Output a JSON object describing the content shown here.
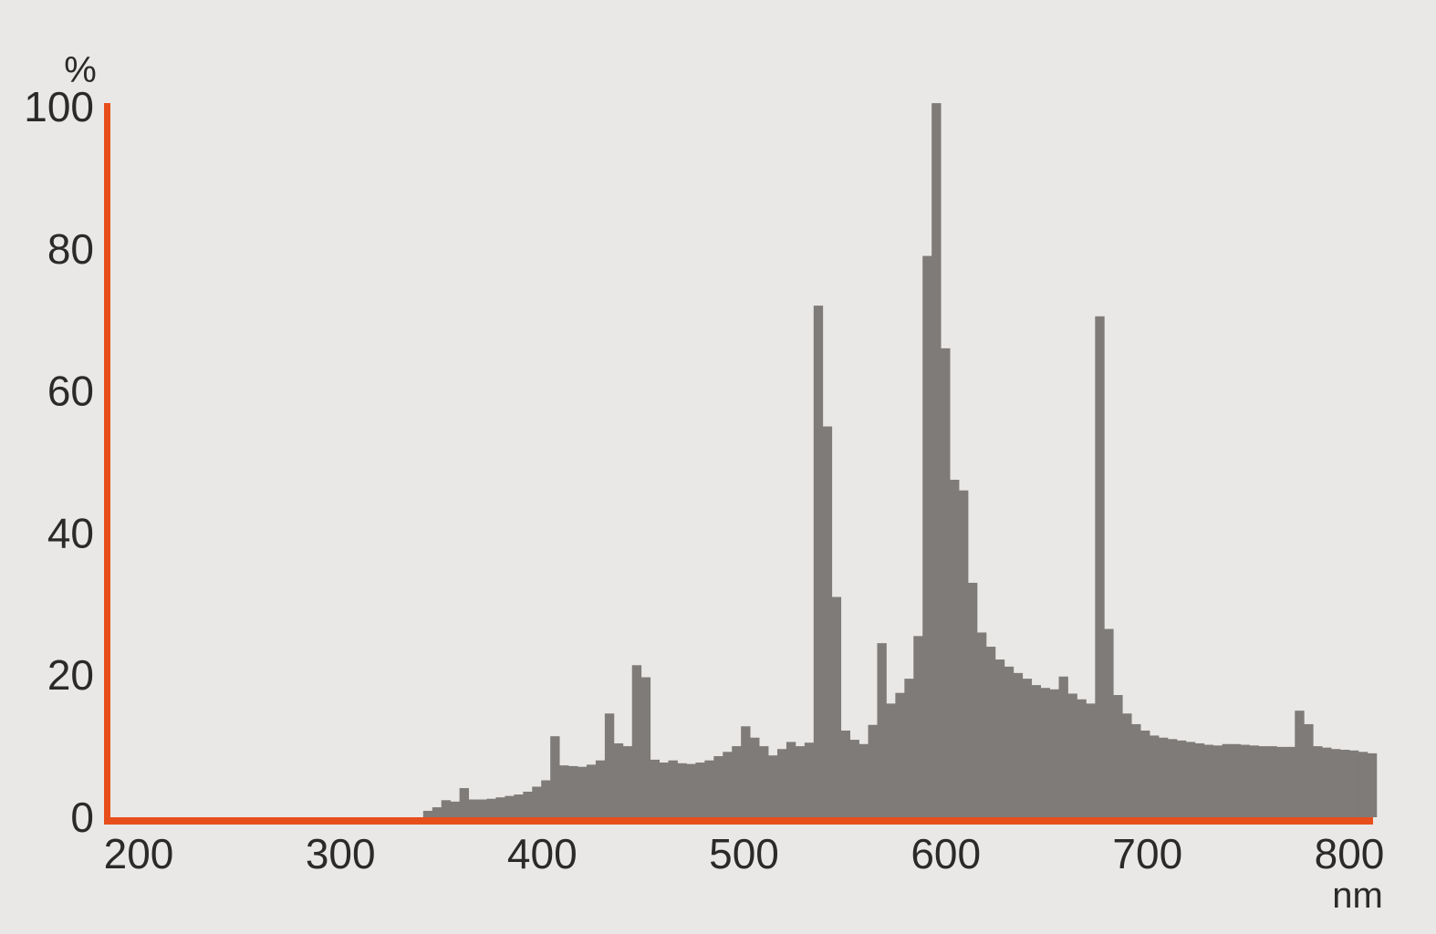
{
  "page": {
    "background_color": "#e9e8e6",
    "text_color": "#2b2a29"
  },
  "chart_data": {
    "type": "bar",
    "title": "",
    "xlabel": "nm",
    "ylabel": "%",
    "x_ticks": [
      200,
      300,
      400,
      500,
      600,
      700,
      800
    ],
    "y_ticks": [
      0,
      20,
      40,
      60,
      80,
      100
    ],
    "xlim": [
      186,
      813
    ],
    "ylim": [
      0,
      100
    ],
    "grid": false,
    "legend": "none",
    "bar_color": "#7e7b78",
    "axis_color": "#e84e1c",
    "description": "Relative spectral power distribution histogram of a high-pressure sodium type lamp",
    "bins": {
      "start_nm": 341,
      "step_nm": 4.5,
      "unit": "nm"
    },
    "values_pct": [
      0.9,
      1.4,
      2.4,
      2.2,
      4.1,
      2.5,
      2.5,
      2.6,
      2.8,
      3.0,
      3.2,
      3.6,
      4.3,
      5.2,
      11.4,
      7.3,
      7.2,
      7.1,
      7.4,
      8.0,
      14.6,
      10.4,
      10.0,
      21.4,
      19.7,
      8.1,
      7.7,
      8.0,
      7.6,
      7.5,
      7.7,
      8.0,
      8.6,
      9.2,
      10.0,
      12.8,
      11.2,
      10.0,
      8.7,
      9.6,
      10.6,
      10.0,
      10.5,
      72.0,
      55.0,
      31.0,
      12.2,
      10.9,
      10.3,
      13.0,
      24.5,
      16.0,
      17.5,
      19.5,
      25.5,
      79.0,
      100.5,
      66.0,
      47.5,
      46.0,
      33.0,
      26.0,
      24.0,
      22.2,
      21.2,
      20.3,
      19.5,
      18.6,
      18.2,
      18.0,
      19.8,
      17.4,
      16.6,
      16.0,
      70.5,
      26.5,
      17.2,
      14.6,
      13.1,
      12.2,
      11.5,
      11.2,
      11.0,
      10.8,
      10.6,
      10.4,
      10.2,
      10.1,
      10.3,
      10.3,
      10.2,
      10.1,
      10.0,
      10.0,
      9.9,
      9.9,
      15.0,
      13.1,
      10.0,
      9.8,
      9.6,
      9.5,
      9.4,
      9.2,
      9.0
    ]
  }
}
